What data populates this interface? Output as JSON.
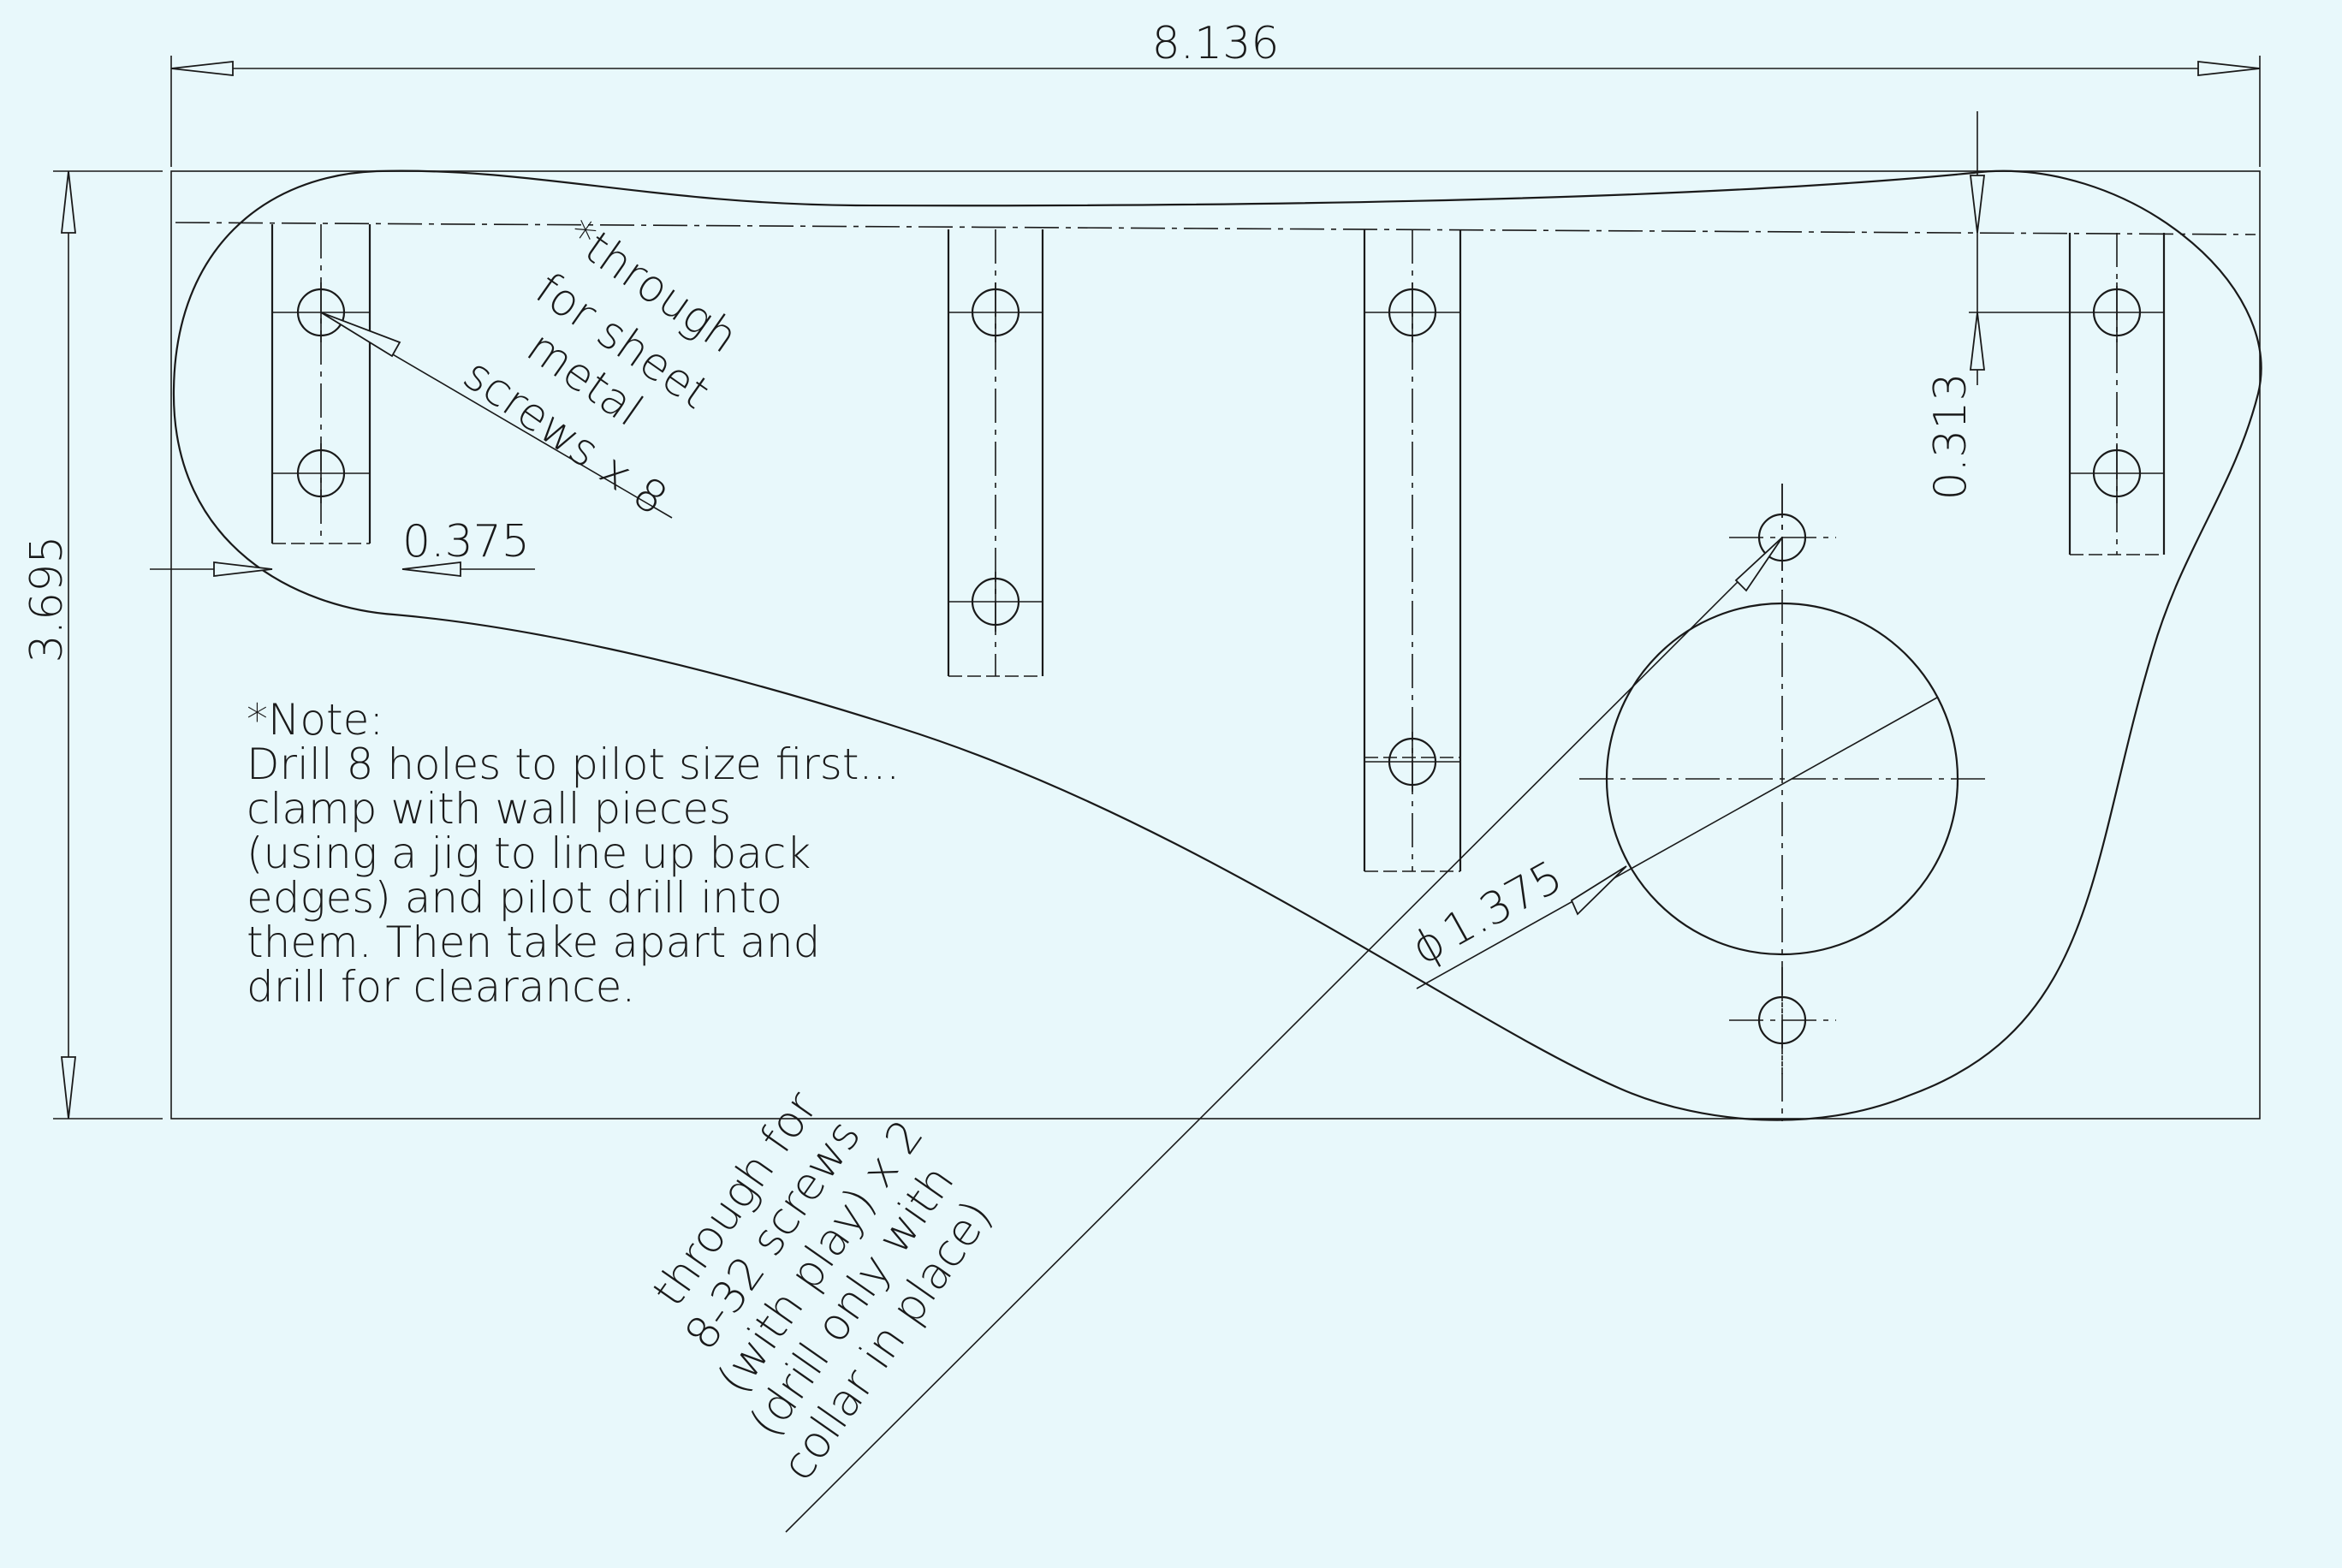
{
  "dimensions": {
    "overall_width": "8.136",
    "overall_height": "3.695",
    "edge_offset": "0.313",
    "slot_offset": "0.375",
    "bore_diameter_symbol": "ϕ",
    "bore_diameter": "1.375"
  },
  "callouts": {
    "sheet_metal_holes": [
      "*through",
      "for sheet",
      "metal",
      "screws x 8"
    ],
    "screw_holes": [
      "through for",
      "8-32 screws",
      "(with play) x 2",
      "(drill only with",
      "collar in place)"
    ]
  },
  "note": {
    "heading": "*Note:",
    "lines": [
      "Drill 8 holes to pilot size first...",
      "clamp with wall pieces",
      "(using a jig to line up back",
      "edges) and pilot drill into",
      "them. Then take apart and",
      "drill for clearance."
    ]
  },
  "colors": {
    "background": "#e8f8fb",
    "ink": "#1a1a1a"
  }
}
